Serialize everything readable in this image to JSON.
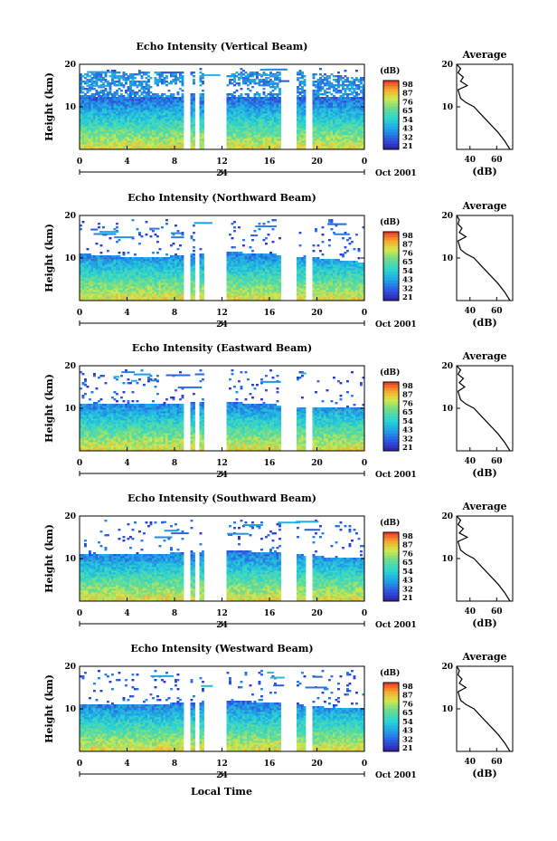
{
  "figure": {
    "xlabel": "Local Time",
    "date_label": "Oct 2001",
    "day_label": "24",
    "avg_title": "Average",
    "avg_xlabel": "(dB)",
    "colorbar_unit": "(dB)",
    "ylabel": "Height (km)"
  },
  "chart_data": [
    {
      "type": "heatmap",
      "title": "Echo Intensity (Vertical Beam)",
      "ylabel": "Height (km)",
      "x_ticks": [
        "0",
        "4",
        "8",
        "12",
        "16",
        "20",
        "0"
      ],
      "xlim": [
        0,
        24
      ],
      "y_ticks": [
        "20",
        "10"
      ],
      "ylim": [
        0,
        20
      ],
      "colorbar": {
        "unit": "(dB)",
        "ticks": [
          98,
          87,
          76,
          65,
          54,
          43,
          32,
          21
        ]
      },
      "data_gaps_hours": [
        [
          8.8,
          9.3
        ],
        [
          9.8,
          10.0
        ],
        [
          10.4,
          12.3
        ],
        [
          16.9,
          18.2
        ],
        [
          19.1,
          19.6
        ]
      ],
      "echo_top_km": [
        [
          0,
          18
        ],
        [
          6,
          18.5
        ],
        [
          12,
          18
        ],
        [
          16,
          18.5
        ],
        [
          20,
          18
        ],
        [
          24,
          17
        ]
      ],
      "average_profile": {
        "title": "Average",
        "xlabel": "(dB)",
        "x_ticks": [
          40,
          60
        ],
        "xlim": [
          30,
          72
        ],
        "height_km": [
          0,
          2,
          4,
          6,
          8,
          10,
          11,
          12,
          14,
          15,
          16,
          17,
          18,
          19,
          20
        ],
        "value_db": [
          70,
          66,
          61,
          55,
          49,
          43,
          37,
          33,
          31,
          38,
          33,
          35,
          31,
          33,
          30
        ]
      }
    },
    {
      "type": "heatmap",
      "title": "Echo Intensity (Northward Beam)",
      "ylabel": "Height (km)",
      "x_ticks": [
        "0",
        "4",
        "8",
        "12",
        "16",
        "20",
        "0"
      ],
      "xlim": [
        0,
        24
      ],
      "y_ticks": [
        "20",
        "10"
      ],
      "ylim": [
        0,
        20
      ],
      "colorbar": {
        "unit": "(dB)",
        "ticks": [
          98,
          87,
          76,
          65,
          54,
          43,
          32,
          21
        ]
      },
      "data_gaps_hours": [
        [
          8.8,
          9.3
        ],
        [
          9.8,
          10.0
        ],
        [
          10.4,
          12.3
        ],
        [
          16.9,
          18.2
        ],
        [
          19.1,
          19.6
        ]
      ],
      "echo_top_km": [
        [
          0,
          11
        ],
        [
          6,
          10
        ],
        [
          12,
          11.5
        ],
        [
          16,
          11
        ],
        [
          20,
          10
        ],
        [
          24,
          9
        ]
      ],
      "average_profile": {
        "title": "Average",
        "xlabel": "(dB)",
        "x_ticks": [
          40,
          60
        ],
        "xlim": [
          30,
          72
        ],
        "height_km": [
          0,
          2,
          4,
          6,
          8,
          10,
          11,
          12,
          14,
          15,
          16,
          17,
          18,
          19,
          20
        ],
        "value_db": [
          70,
          66,
          61,
          55,
          49,
          43,
          37,
          33,
          31,
          37,
          32,
          34,
          31,
          32,
          30
        ]
      }
    },
    {
      "type": "heatmap",
      "title": "Echo Intensity (Eastward Beam)",
      "ylabel": "Height (km)",
      "x_ticks": [
        "0",
        "4",
        "8",
        "12",
        "16",
        "20",
        "0"
      ],
      "xlim": [
        0,
        24
      ],
      "y_ticks": [
        "20",
        "10"
      ],
      "ylim": [
        0,
        20
      ],
      "colorbar": {
        "unit": "(dB)",
        "ticks": [
          98,
          87,
          76,
          65,
          54,
          43,
          32,
          21
        ]
      },
      "data_gaps_hours": [
        [
          8.8,
          9.3
        ],
        [
          9.8,
          10.0
        ],
        [
          10.4,
          12.3
        ],
        [
          16.9,
          18.2
        ],
        [
          19.1,
          19.6
        ]
      ],
      "echo_top_km": [
        [
          0,
          11
        ],
        [
          6,
          11
        ],
        [
          12,
          11.5
        ],
        [
          16,
          11
        ],
        [
          20,
          10
        ],
        [
          24,
          10
        ]
      ],
      "average_profile": {
        "title": "Average",
        "xlabel": "(dB)",
        "x_ticks": [
          40,
          60
        ],
        "xlim": [
          30,
          72
        ],
        "height_km": [
          0,
          2,
          4,
          6,
          8,
          10,
          11,
          12,
          14,
          15,
          16,
          17,
          18,
          19,
          20
        ],
        "value_db": [
          70,
          66,
          61,
          55,
          49,
          43,
          37,
          33,
          31,
          36,
          32,
          35,
          31,
          33,
          30
        ]
      }
    },
    {
      "type": "heatmap",
      "title": "Echo Intensity (Southward Beam)",
      "ylabel": "Height (km)",
      "x_ticks": [
        "0",
        "4",
        "8",
        "12",
        "16",
        "20",
        "0"
      ],
      "xlim": [
        0,
        24
      ],
      "y_ticks": [
        "20",
        "10"
      ],
      "ylim": [
        0,
        20
      ],
      "colorbar": {
        "unit": "(dB)",
        "ticks": [
          98,
          87,
          76,
          65,
          54,
          43,
          32,
          21
        ]
      },
      "data_gaps_hours": [
        [
          8.8,
          9.3
        ],
        [
          9.8,
          10.0
        ],
        [
          10.4,
          12.3
        ],
        [
          16.9,
          18.2
        ],
        [
          19.1,
          19.6
        ]
      ],
      "echo_top_km": [
        [
          0,
          11
        ],
        [
          6,
          11
        ],
        [
          12,
          12
        ],
        [
          16,
          11.5
        ],
        [
          20,
          10.5
        ],
        [
          24,
          10
        ]
      ],
      "average_profile": {
        "title": "Average",
        "xlabel": "(dB)",
        "x_ticks": [
          40,
          60
        ],
        "xlim": [
          30,
          72
        ],
        "height_km": [
          0,
          2,
          4,
          6,
          8,
          10,
          11,
          12,
          14,
          15,
          16,
          17,
          18,
          19,
          20
        ],
        "value_db": [
          70,
          66,
          61,
          55,
          49,
          43,
          37,
          33,
          31,
          38,
          32,
          35,
          31,
          33,
          30
        ]
      }
    },
    {
      "type": "heatmap",
      "title": "Echo Intensity (Westward Beam)",
      "ylabel": "Height (km)",
      "x_ticks": [
        "0",
        "4",
        "8",
        "12",
        "16",
        "20",
        "0"
      ],
      "xlim": [
        0,
        24
      ],
      "y_ticks": [
        "20",
        "10"
      ],
      "ylim": [
        0,
        20
      ],
      "colorbar": {
        "unit": "(dB)",
        "ticks": [
          98,
          87,
          76,
          65,
          54,
          43,
          32,
          21
        ]
      },
      "data_gaps_hours": [
        [
          8.8,
          9.3
        ],
        [
          9.8,
          10.0
        ],
        [
          10.4,
          12.3
        ],
        [
          16.9,
          18.2
        ],
        [
          19.1,
          19.6
        ]
      ],
      "echo_top_km": [
        [
          0,
          11
        ],
        [
          6,
          11
        ],
        [
          12,
          12
        ],
        [
          16,
          11.5
        ],
        [
          20,
          10.5
        ],
        [
          24,
          10
        ]
      ],
      "average_profile": {
        "title": "Average",
        "xlabel": "(dB)",
        "x_ticks": [
          40,
          60
        ],
        "xlim": [
          30,
          72
        ],
        "height_km": [
          0,
          2,
          4,
          6,
          8,
          10,
          11,
          12,
          14,
          15,
          16,
          17,
          18,
          19,
          20
        ],
        "value_db": [
          70,
          66,
          61,
          55,
          49,
          43,
          37,
          33,
          31,
          37,
          32,
          34,
          31,
          32,
          30
        ]
      }
    }
  ]
}
